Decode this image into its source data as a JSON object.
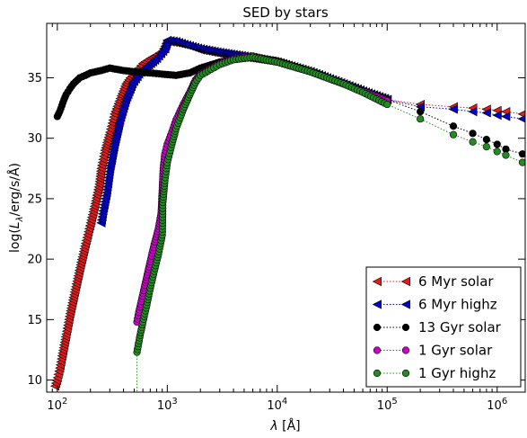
{
  "chart_data": {
    "type": "scatter",
    "title": "SED by stars",
    "xlabel": "λ  [Å]",
    "ylabel": "log(L_λ/erg/s/Å)",
    "x_scale": "log",
    "xlim": [
      80,
      1800000
    ],
    "ylim": [
      9,
      39.5
    ],
    "x_ticks": [
      {
        "value": 100,
        "label": "10^2"
      },
      {
        "value": 1000,
        "label": "10^3"
      },
      {
        "value": 10000,
        "label": "10^4"
      },
      {
        "value": 100000,
        "label": "10^5"
      },
      {
        "value": 1000000,
        "label": "10^6"
      }
    ],
    "y_ticks": [
      10,
      15,
      20,
      25,
      30,
      35
    ],
    "legend_position": "lower-right",
    "grid": false,
    "series": [
      {
        "name": "6 Myr solar",
        "marker": "triangle-left",
        "color": "#e41a1c",
        "points": [
          [
            95,
            9.5
          ],
          [
            100,
            10.2
          ],
          [
            105,
            11
          ],
          [
            110,
            12
          ],
          [
            120,
            13.8
          ],
          [
            130,
            15.5
          ],
          [
            145,
            17.5
          ],
          [
            160,
            19.3
          ],
          [
            180,
            21.3
          ],
          [
            200,
            23
          ],
          [
            220,
            24.6
          ],
          [
            240,
            26.2
          ],
          [
            250,
            27.5
          ],
          [
            270,
            29
          ],
          [
            300,
            30.5
          ],
          [
            330,
            32
          ],
          [
            380,
            33.5
          ],
          [
            420,
            34.5
          ],
          [
            460,
            35
          ],
          [
            500,
            35.3
          ],
          [
            550,
            35.8
          ],
          [
            600,
            36.2
          ],
          [
            700,
            36.6
          ],
          [
            800,
            36.9
          ],
          [
            900,
            37.2
          ],
          [
            950,
            37.6
          ],
          [
            1000,
            38
          ],
          [
            1200,
            37.9
          ],
          [
            1500,
            37.7
          ],
          [
            2000,
            37.3
          ],
          [
            3000,
            37
          ],
          [
            4000,
            36.8
          ],
          [
            6000,
            36.6
          ],
          [
            10000,
            36.3
          ],
          [
            20000,
            35.5
          ],
          [
            40000,
            34.5
          ],
          [
            60000,
            33.9
          ],
          [
            100000,
            33.2
          ],
          [
            200000,
            32.8
          ],
          [
            400000,
            32.6
          ],
          [
            600000,
            32.5
          ],
          [
            800000,
            32.4
          ],
          [
            1000000,
            32.3
          ],
          [
            1200000,
            32.2
          ],
          [
            1700000,
            32
          ]
        ]
      },
      {
        "name": "6 Myr highz",
        "marker": "triangle-left",
        "color": "#0000cc",
        "points": [
          [
            250,
            23
          ],
          [
            260,
            24
          ],
          [
            280,
            25.5
          ],
          [
            300,
            27.5
          ],
          [
            330,
            29.5
          ],
          [
            370,
            31.5
          ],
          [
            420,
            33.2
          ],
          [
            480,
            34.5
          ],
          [
            550,
            35.3
          ],
          [
            650,
            35.9
          ],
          [
            800,
            36.6
          ],
          [
            950,
            37.4
          ],
          [
            1000,
            38.1
          ],
          [
            1200,
            38
          ],
          [
            1500,
            37.7
          ],
          [
            2000,
            37.4
          ],
          [
            3000,
            37.1
          ],
          [
            5000,
            36.8
          ],
          [
            10000,
            36.3
          ],
          [
            20000,
            35.5
          ],
          [
            40000,
            34.5
          ],
          [
            60000,
            33.9
          ],
          [
            100000,
            33.2
          ],
          [
            200000,
            32.6
          ],
          [
            400000,
            32.4
          ],
          [
            600000,
            32.2
          ],
          [
            800000,
            32.1
          ],
          [
            1000000,
            31.9
          ],
          [
            1200000,
            31.8
          ],
          [
            1700000,
            31.6
          ]
        ]
      },
      {
        "name": "13 Gyr solar",
        "marker": "circle",
        "color": "#000000",
        "points": [
          [
            100,
            31.8
          ],
          [
            105,
            32.2
          ],
          [
            110,
            32.7
          ],
          [
            115,
            33.2
          ],
          [
            120,
            33.6
          ],
          [
            130,
            34.1
          ],
          [
            140,
            34.5
          ],
          [
            160,
            35
          ],
          [
            180,
            35.2
          ],
          [
            200,
            35.4
          ],
          [
            250,
            35.6
          ],
          [
            300,
            35.8
          ],
          [
            400,
            35.6
          ],
          [
            500,
            35.5
          ],
          [
            700,
            35.4
          ],
          [
            900,
            35.3
          ],
          [
            1200,
            35.2
          ],
          [
            1600,
            35.4
          ],
          [
            2000,
            35.8
          ],
          [
            3000,
            36.3
          ],
          [
            4000,
            36.5
          ],
          [
            6000,
            36.7
          ],
          [
            10000,
            36.4
          ],
          [
            20000,
            35.5
          ],
          [
            40000,
            34.5
          ],
          [
            60000,
            33.9
          ],
          [
            100000,
            33.2
          ],
          [
            200000,
            32.2
          ],
          [
            400000,
            31
          ],
          [
            600000,
            30.4
          ],
          [
            800000,
            29.9
          ],
          [
            1000000,
            29.5
          ],
          [
            1200000,
            29.1
          ],
          [
            1700000,
            28.7
          ]
        ]
      },
      {
        "name": "1 Gyr solar",
        "marker": "circle",
        "color": "#cc00cc",
        "points": [
          [
            530,
            14.8
          ],
          [
            550,
            15.6
          ],
          [
            580,
            16.5
          ],
          [
            610,
            17.4
          ],
          [
            650,
            18.5
          ],
          [
            700,
            19.8
          ],
          [
            760,
            21.2
          ],
          [
            830,
            22.5
          ],
          [
            880,
            23.8
          ],
          [
            920,
            27.5
          ],
          [
            950,
            28.7
          ],
          [
            1000,
            29.5
          ],
          [
            1100,
            30.5
          ],
          [
            1200,
            31.5
          ],
          [
            1400,
            32.8
          ],
          [
            1600,
            33.8
          ],
          [
            1800,
            34.8
          ],
          [
            2000,
            35.3
          ],
          [
            2500,
            35.8
          ],
          [
            3000,
            36.2
          ],
          [
            4000,
            36.6
          ],
          [
            6000,
            36.8
          ],
          [
            10000,
            36.3
          ],
          [
            20000,
            35.5
          ],
          [
            40000,
            34.5
          ],
          [
            60000,
            33.9
          ],
          [
            100000,
            33.1
          ]
        ]
      },
      {
        "name": "1 Gyr highz",
        "marker": "circle",
        "color": "#228b22",
        "points": [
          [
            530,
            12.3
          ],
          [
            560,
            13.5
          ],
          [
            600,
            14.8
          ],
          [
            650,
            16.2
          ],
          [
            700,
            17.6
          ],
          [
            760,
            19
          ],
          [
            830,
            20.4
          ],
          [
            900,
            22
          ],
          [
            910,
            24.7
          ],
          [
            950,
            26.5
          ],
          [
            1000,
            28
          ],
          [
            1100,
            29.5
          ],
          [
            1200,
            30.8
          ],
          [
            1400,
            32.4
          ],
          [
            1600,
            33.6
          ],
          [
            1800,
            34.6
          ],
          [
            2000,
            35.2
          ],
          [
            2500,
            35.7
          ],
          [
            3000,
            36.1
          ],
          [
            4000,
            36.5
          ],
          [
            6000,
            36.7
          ],
          [
            10000,
            36.3
          ],
          [
            20000,
            35.5
          ],
          [
            40000,
            34.5
          ],
          [
            60000,
            33.8
          ],
          [
            100000,
            32.8
          ],
          [
            200000,
            31.6
          ],
          [
            400000,
            30.3
          ],
          [
            600000,
            29.7
          ],
          [
            800000,
            29.3
          ],
          [
            1000000,
            28.9
          ],
          [
            1200000,
            28.6
          ],
          [
            1700000,
            28
          ]
        ]
      }
    ]
  }
}
